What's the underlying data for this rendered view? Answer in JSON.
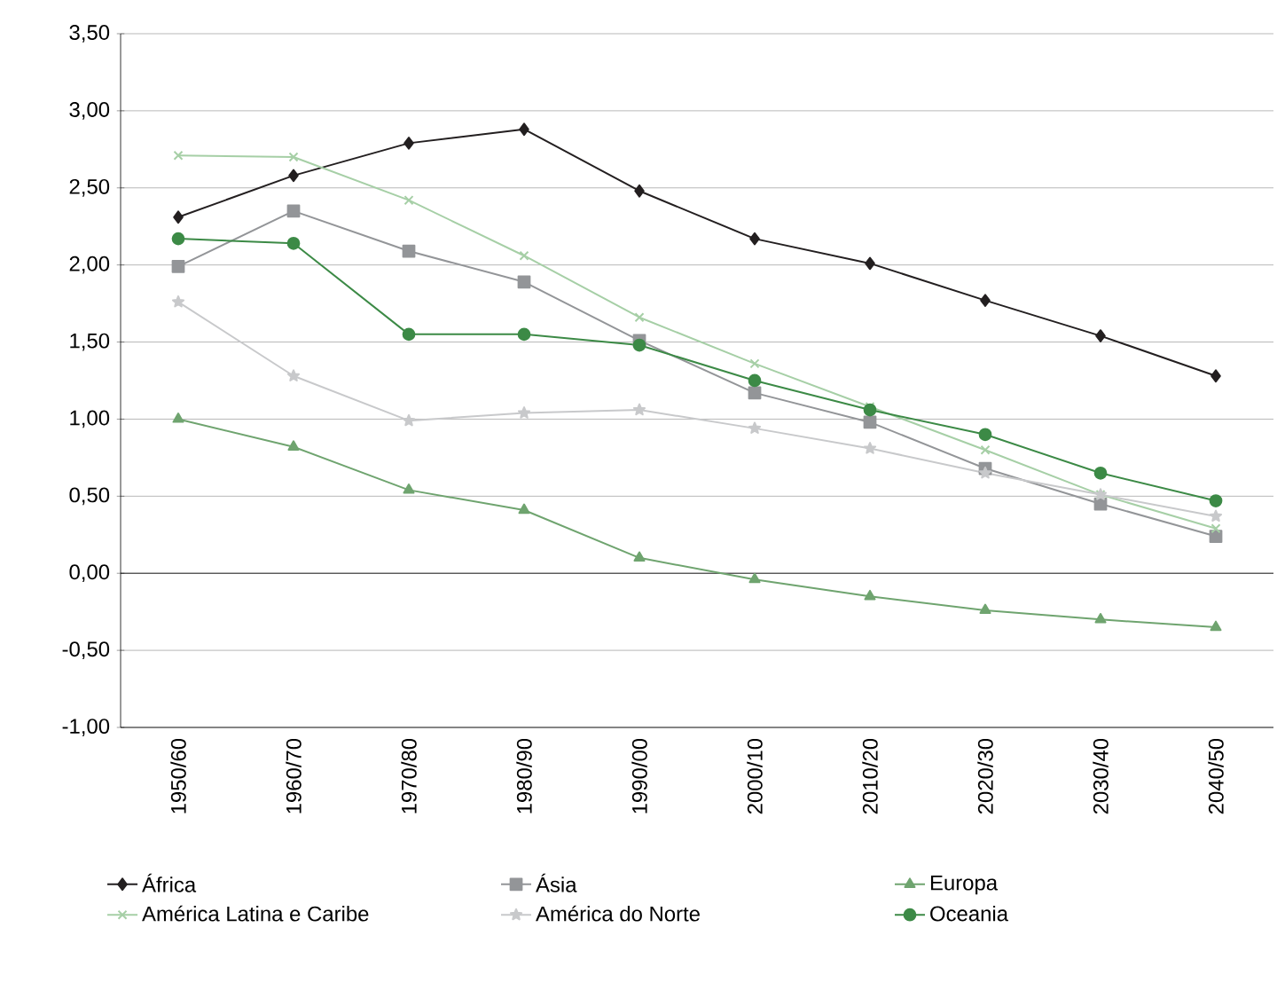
{
  "chart_data": {
    "type": "line",
    "categories": [
      "1950/60",
      "1960/70",
      "1970/80",
      "1980/90",
      "1990/00",
      "2000/10",
      "2010/20",
      "2020/30",
      "2030/40",
      "2040/50"
    ],
    "ylim": [
      -1,
      3.5
    ],
    "yticks": [
      {
        "value": -1,
        "label": "-1,00"
      },
      {
        "value": -0.5,
        "label": "-0,50"
      },
      {
        "value": 0,
        "label": "0,00"
      },
      {
        "value": 0.5,
        "label": "0,50"
      },
      {
        "value": 1,
        "label": "1,00"
      },
      {
        "value": 1.5,
        "label": "1,50"
      },
      {
        "value": 2,
        "label": "2,00"
      },
      {
        "value": 2.5,
        "label": "2,50"
      },
      {
        "value": 3,
        "label": "3,00"
      },
      {
        "value": 3.5,
        "label": "3,50"
      }
    ],
    "grid": "y",
    "legend": "bottom",
    "series": [
      {
        "name": "África",
        "color": "#231f20",
        "marker": "diamond",
        "values": [
          2.31,
          2.58,
          2.79,
          2.88,
          2.48,
          2.17,
          2.01,
          1.77,
          1.54,
          1.28
        ]
      },
      {
        "name": "Ásia",
        "color": "#939598",
        "marker": "square",
        "values": [
          1.99,
          2.35,
          2.09,
          1.89,
          1.51,
          1.17,
          0.98,
          0.68,
          0.45,
          0.24
        ]
      },
      {
        "name": "Europa",
        "color": "#6fa46f",
        "marker": "triangle",
        "values": [
          1.0,
          0.82,
          0.54,
          0.41,
          0.1,
          -0.04,
          -0.15,
          -0.24,
          -0.3,
          -0.35
        ]
      },
      {
        "name": "América Latina e Caribe",
        "color": "#a6cfa6",
        "marker": "cross",
        "values": [
          2.71,
          2.7,
          2.42,
          2.06,
          1.66,
          1.36,
          1.08,
          0.8,
          0.51,
          0.29
        ]
      },
      {
        "name": "América do Norte",
        "color": "#c8c9cb",
        "marker": "star",
        "values": [
          1.76,
          1.28,
          0.99,
          1.04,
          1.06,
          0.94,
          0.81,
          0.65,
          0.51,
          0.37
        ]
      },
      {
        "name": "Oceania",
        "color": "#3c8a46",
        "marker": "circle",
        "values": [
          2.17,
          2.14,
          1.55,
          1.55,
          1.48,
          1.25,
          1.06,
          0.9,
          0.65,
          0.47
        ]
      }
    ]
  }
}
